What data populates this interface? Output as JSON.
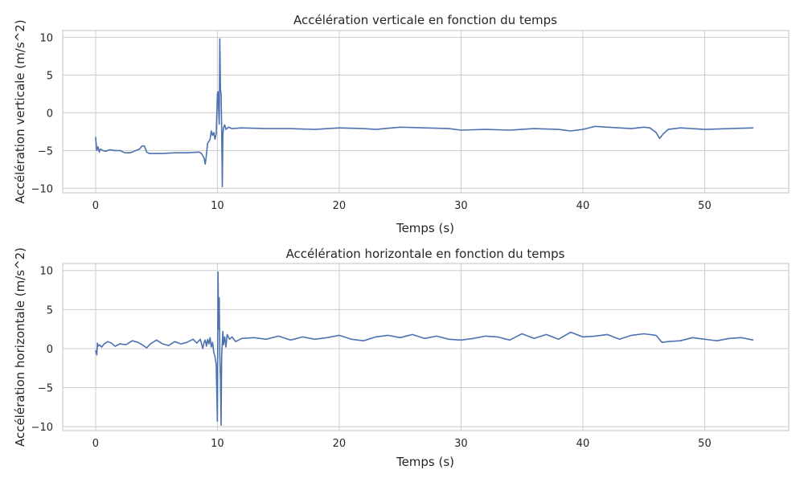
{
  "chart_data": [
    {
      "type": "line",
      "title": "Accélération verticale en fonction du temps",
      "xlabel": "Temps (s)",
      "ylabel": "Accélération verticale (m/s^2)",
      "xlim": [
        -2.7,
        56.9
      ],
      "ylim": [
        -10.6,
        10.9
      ],
      "xticks": [
        0,
        10,
        20,
        30,
        40,
        50
      ],
      "yticks": [
        -10,
        -5,
        0,
        5,
        10
      ],
      "xtick_labels": [
        "0",
        "10",
        "20",
        "30",
        "40",
        "50"
      ],
      "ytick_labels": [
        "−10",
        "−5",
        "0",
        "5",
        "10"
      ],
      "grid": true,
      "color": "#4c72b0",
      "series": [
        {
          "x": [
            0,
            0.1,
            0.2,
            0.3,
            0.4,
            0.6,
            0.8,
            1.2,
            1.6,
            2.0,
            2.4,
            2.8,
            3.0,
            3.3,
            3.6,
            3.8,
            4.0,
            4.2,
            4.4,
            4.8,
            5.5,
            6.5,
            7.5,
            8.5,
            8.7,
            8.9,
            9.0,
            9.1,
            9.2,
            9.3,
            9.4,
            9.5,
            9.6,
            9.7,
            9.8,
            9.9,
            10.0,
            10.05,
            10.1,
            10.15,
            10.2,
            10.25,
            10.3,
            10.35,
            10.4,
            10.45,
            10.5,
            10.6,
            10.7,
            10.9,
            11.2,
            12,
            14,
            16,
            18,
            20,
            22,
            23,
            25,
            27,
            29,
            30,
            32,
            34,
            36,
            38,
            39,
            40,
            41,
            42,
            44,
            45,
            45.5,
            46,
            46.3,
            46.6,
            47,
            48,
            50,
            52,
            54
          ],
          "y": [
            -3.2,
            -5.0,
            -4.5,
            -5.2,
            -4.8,
            -5.0,
            -5.1,
            -4.9,
            -5.0,
            -5.0,
            -5.3,
            -5.3,
            -5.2,
            -5.0,
            -4.8,
            -4.4,
            -4.4,
            -5.2,
            -5.4,
            -5.4,
            -5.4,
            -5.3,
            -5.3,
            -5.2,
            -5.4,
            -6.0,
            -6.8,
            -5.5,
            -4.0,
            -3.8,
            -3.5,
            -2.4,
            -3.0,
            -2.6,
            -3.5,
            -2.8,
            2.5,
            2.8,
            0.5,
            -1.5,
            9.8,
            3.0,
            2.6,
            -2.0,
            -9.8,
            -2.8,
            -2.0,
            -1.6,
            -2.2,
            -1.9,
            -2.1,
            -2.0,
            -2.1,
            -2.1,
            -2.2,
            -2.0,
            -2.1,
            -2.2,
            -1.9,
            -2.0,
            -2.1,
            -2.3,
            -2.2,
            -2.3,
            -2.1,
            -2.2,
            -2.4,
            -2.2,
            -1.8,
            -1.9,
            -2.1,
            -1.9,
            -2.0,
            -2.6,
            -3.4,
            -2.8,
            -2.2,
            -2.0,
            -2.2,
            -2.1,
            -2.0
          ]
        }
      ]
    },
    {
      "type": "line",
      "title": "Accélération horizontale en fonction du temps",
      "xlabel": "Temps (s)",
      "ylabel": "Accélération horizontale (m/s^2)",
      "xlim": [
        -2.7,
        56.9
      ],
      "ylim": [
        -10.5,
        10.9
      ],
      "xticks": [
        0,
        10,
        20,
        30,
        40,
        50
      ],
      "yticks": [
        -10,
        -5,
        0,
        5,
        10
      ],
      "xtick_labels": [
        "0",
        "10",
        "20",
        "30",
        "40",
        "50"
      ],
      "ytick_labels": [
        "−10",
        "−5",
        "0",
        "5",
        "10"
      ],
      "grid": true,
      "color": "#4c72b0",
      "series": [
        {
          "x": [
            0,
            0.1,
            0.15,
            0.2,
            0.3,
            0.5,
            0.7,
            1.0,
            1.3,
            1.6,
            2.0,
            2.5,
            3.0,
            3.5,
            3.8,
            4.2,
            4.5,
            5.0,
            5.5,
            6.0,
            6.5,
            7.0,
            7.5,
            8.0,
            8.3,
            8.6,
            8.8,
            8.9,
            9.0,
            9.1,
            9.2,
            9.3,
            9.4,
            9.5,
            9.6,
            9.7,
            9.8,
            9.9,
            10.0,
            10.05,
            10.1,
            10.15,
            10.2,
            10.25,
            10.3,
            10.35,
            10.4,
            10.45,
            10.5,
            10.6,
            10.7,
            10.8,
            11.0,
            11.2,
            11.5,
            12,
            13,
            14,
            15,
            16,
            17,
            18,
            19,
            20,
            21,
            22,
            23,
            24,
            25,
            26,
            27,
            28,
            29,
            30,
            31,
            32,
            33,
            34,
            35,
            36,
            37,
            38,
            39,
            40,
            41,
            42,
            43,
            44,
            45,
            46,
            46.5,
            47,
            48,
            49,
            50,
            51,
            52,
            53,
            54
          ],
          "y": [
            -0.2,
            -0.8,
            0.7,
            0.3,
            0.5,
            0.2,
            0.6,
            0.9,
            0.7,
            0.3,
            0.6,
            0.5,
            1.0,
            0.8,
            0.5,
            0.1,
            0.6,
            1.1,
            0.6,
            0.4,
            0.9,
            0.6,
            0.8,
            1.2,
            0.7,
            1.2,
            0.0,
            0.8,
            1.1,
            0.3,
            1.2,
            0.6,
            1.4,
            0.2,
            0.8,
            -0.5,
            -1.0,
            -2.0,
            -9.3,
            9.8,
            2.5,
            6.5,
            -1.0,
            -3.5,
            -9.8,
            -1.0,
            0.8,
            2.2,
            0.5,
            1.5,
            0.2,
            1.8,
            1.2,
            1.5,
            0.9,
            1.3,
            1.4,
            1.2,
            1.6,
            1.1,
            1.5,
            1.2,
            1.4,
            1.7,
            1.2,
            1.0,
            1.5,
            1.7,
            1.4,
            1.8,
            1.3,
            1.6,
            1.2,
            1.1,
            1.3,
            1.6,
            1.5,
            1.1,
            1.9,
            1.3,
            1.8,
            1.2,
            2.1,
            1.5,
            1.6,
            1.8,
            1.2,
            1.7,
            1.9,
            1.7,
            0.8,
            0.9,
            1.0,
            1.4,
            1.2,
            1.0,
            1.3,
            1.4,
            1.1
          ]
        }
      ]
    }
  ]
}
